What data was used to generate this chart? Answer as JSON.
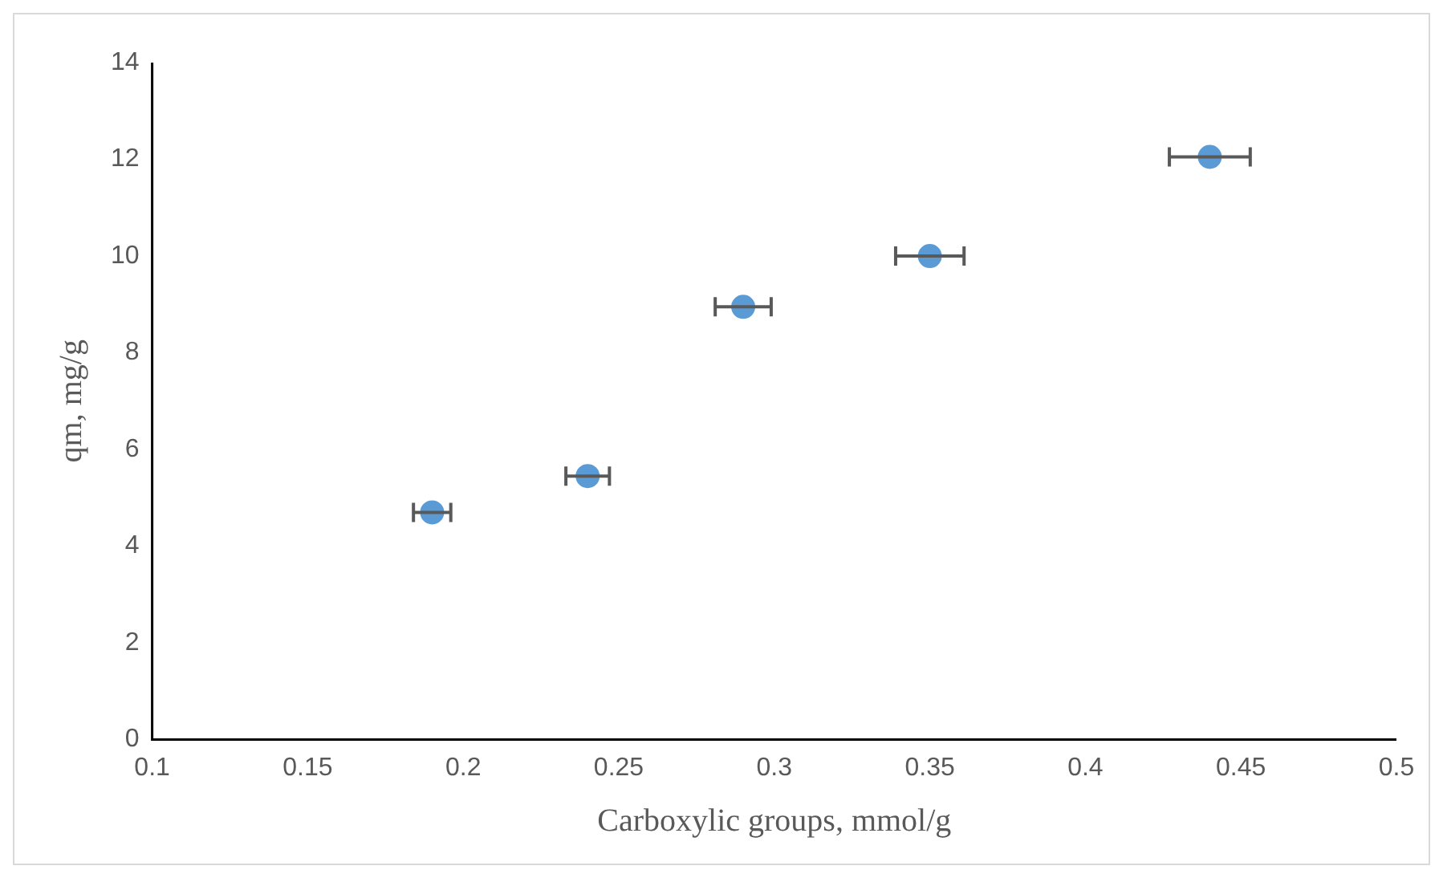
{
  "chart_data": {
    "type": "scatter",
    "xlabel": "Carboxylic groups, mmol/g",
    "ylabel": "qm, mg/g",
    "x": [
      0.19,
      0.24,
      0.29,
      0.35,
      0.44
    ],
    "values": [
      4.7,
      5.45,
      8.95,
      10.0,
      12.05
    ],
    "xerrors": [
      0.006,
      0.007,
      0.009,
      0.011,
      0.013
    ],
    "color": "#5b9bd5",
    "marker": "circle",
    "grid": false,
    "legend": false,
    "xlim": [
      0.1,
      0.5
    ],
    "xticks": [
      0.1,
      0.15,
      0.2,
      0.25,
      0.3,
      0.35,
      0.4,
      0.45,
      0.5
    ],
    "ylim": [
      0,
      14
    ],
    "yticks": [
      0,
      2,
      4,
      6,
      8,
      10,
      12,
      14
    ]
  }
}
